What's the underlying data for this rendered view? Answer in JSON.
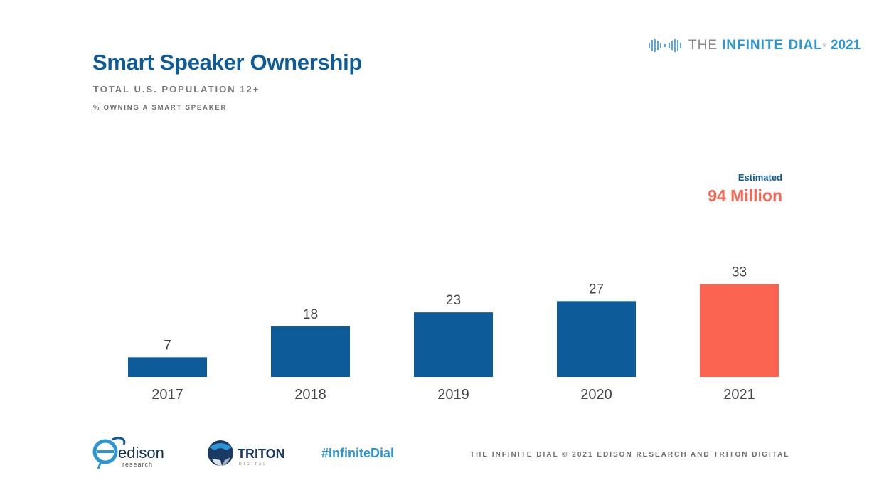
{
  "header": {
    "title": "Smart Speaker Ownership",
    "subtitle": "TOTAL U.S. POPULATION 12+",
    "measure": "% OWNING A SMART SPEAKER"
  },
  "brand": {
    "the": "THE",
    "infinite_dial": "INFINITE DIAL",
    "registered": "®",
    "year": "2021"
  },
  "annotation": {
    "label": "Estimated",
    "value": "94 Million"
  },
  "footer": {
    "edison_name": "edison",
    "edison_sub": "research",
    "triton_name": "TRITON",
    "triton_sub": "DIGITAL",
    "hashtag": "#InfiniteDial",
    "credit": "THE INFINITE DIAL   © 2021 EDISON RESEARCH AND TRITON DIGITAL"
  },
  "colors": {
    "primary": "#0d5b99",
    "highlight": "#fa6450",
    "accent": "#2b95d6"
  },
  "chart_data": {
    "type": "bar",
    "categories": [
      "2017",
      "2018",
      "2019",
      "2020",
      "2021"
    ],
    "values": [
      7,
      18,
      23,
      27,
      33
    ],
    "highlight_category": "2021",
    "ylim": [
      0,
      40
    ],
    "grid": false,
    "data_labels": true
  }
}
